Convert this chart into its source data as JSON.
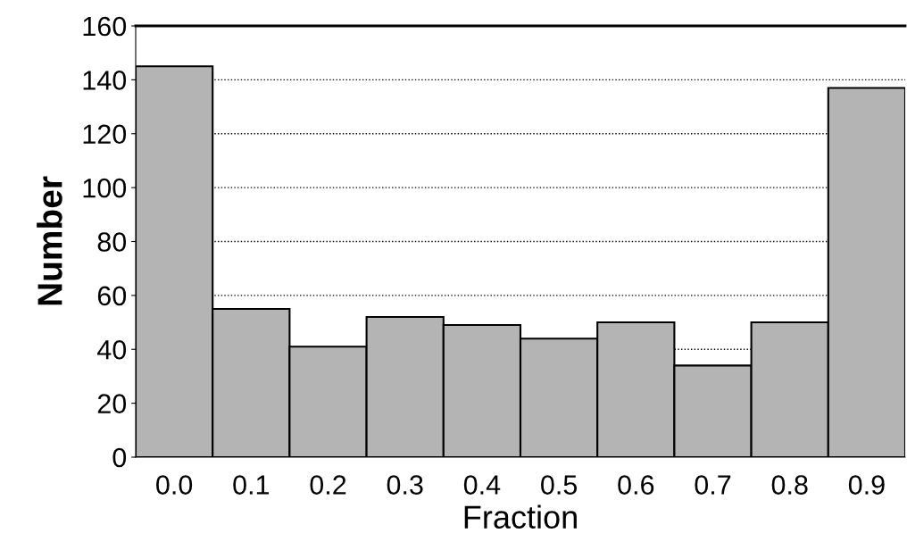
{
  "chart_data": {
    "type": "bar",
    "xlabel": "Fraction",
    "ylabel": "Number",
    "categories": [
      "0.0",
      "0.1",
      "0.2",
      "0.3",
      "0.4",
      "0.5",
      "0.6",
      "0.7",
      "0.8",
      "0.9"
    ],
    "values": [
      145,
      55,
      41,
      52,
      49,
      44,
      50,
      34,
      50,
      137
    ],
    "color": "#b4b4b4",
    "ylim": [
      0,
      160
    ],
    "yticks": [
      0,
      20,
      40,
      60,
      80,
      100,
      120,
      140,
      160
    ],
    "grid": "y",
    "line_style": "dotted"
  }
}
